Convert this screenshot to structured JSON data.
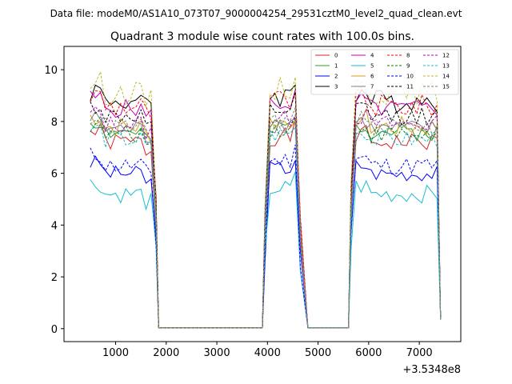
{
  "figure": {
    "suptitle": "Data file: modeM0/AS1A10_073T07_9000004254_29531cztM0_level2_quad_clean.evt"
  },
  "chart_data": {
    "type": "line",
    "title": "Quadrant 3 module wise count rates with 100.0s bins.",
    "xlabel": "",
    "ylabel": "",
    "x_offset_text": "+3.5348e8",
    "xlim": [
      -20,
      7820
    ],
    "ylim": [
      -0.5,
      10.9
    ],
    "x_ticks": [
      1000,
      2000,
      3000,
      4000,
      5000,
      6000,
      7000
    ],
    "x_tick_labels": [
      "1000",
      "2000",
      "3000",
      "4000",
      "5000",
      "6000",
      "7000"
    ],
    "y_ticks": [
      0,
      2,
      4,
      6,
      8,
      10
    ],
    "y_tick_labels": [
      "0",
      "2",
      "4",
      "6",
      "8",
      "10"
    ],
    "legend_position": "top-right",
    "segments": [
      {
        "start": 500,
        "step": 100,
        "count": 13
      },
      {
        "start": 1800,
        "step": 100,
        "count": 1,
        "shape": "drop"
      },
      {
        "start": 1850,
        "step": 0,
        "count": 0
      },
      {
        "start": 3950,
        "step": 100,
        "count": 9
      },
      {
        "start": 5650,
        "step": 100,
        "count": 18
      }
    ],
    "series": [
      {
        "name": "0",
        "color": "#d62728",
        "dash": false,
        "base": 7.2,
        "amp": 0.35,
        "seed": 1
      },
      {
        "name": "1",
        "color": "#2ca02c",
        "dash": false,
        "base": 7.6,
        "amp": 0.35,
        "seed": 2
      },
      {
        "name": "2",
        "color": "#0000ff",
        "dash": false,
        "base": 6.0,
        "amp": 0.3,
        "seed": 3
      },
      {
        "name": "3",
        "color": "#000000",
        "dash": false,
        "base": 8.8,
        "amp": 0.45,
        "seed": 4
      },
      {
        "name": "4",
        "color": "#bf00bf",
        "dash": false,
        "base": 8.5,
        "amp": 0.35,
        "seed": 5
      },
      {
        "name": "5",
        "color": "#17becf",
        "dash": false,
        "base": 5.2,
        "amp": 0.35,
        "seed": 6
      },
      {
        "name": "6",
        "color": "#d4a017",
        "dash": false,
        "base": 7.8,
        "amp": 0.4,
        "seed": 7
      },
      {
        "name": "7",
        "color": "#808080",
        "dash": false,
        "base": 7.7,
        "amp": 0.35,
        "seed": 8
      },
      {
        "name": "8",
        "color": "#ff0000",
        "dash": true,
        "base": 8.6,
        "amp": 0.45,
        "seed": 9
      },
      {
        "name": "9",
        "color": "#008000",
        "dash": true,
        "base": 7.5,
        "amp": 0.35,
        "seed": 10
      },
      {
        "name": "10",
        "color": "#0000ff",
        "dash": true,
        "base": 6.3,
        "amp": 0.35,
        "seed": 11
      },
      {
        "name": "11",
        "color": "#000000",
        "dash": true,
        "base": 8.2,
        "amp": 0.35,
        "seed": 12
      },
      {
        "name": "12",
        "color": "#bf00bf",
        "dash": true,
        "base": 7.9,
        "amp": 0.35,
        "seed": 13
      },
      {
        "name": "13",
        "color": "#17becf",
        "dash": true,
        "base": 7.3,
        "amp": 0.35,
        "seed": 14
      },
      {
        "name": "14",
        "color": "#bcbd22",
        "dash": true,
        "base": 9.1,
        "amp": 0.45,
        "seed": 15
      },
      {
        "name": "15",
        "color": "#7f7f7f",
        "dash": true,
        "base": 7.8,
        "amp": 0.35,
        "seed": 16
      }
    ]
  }
}
